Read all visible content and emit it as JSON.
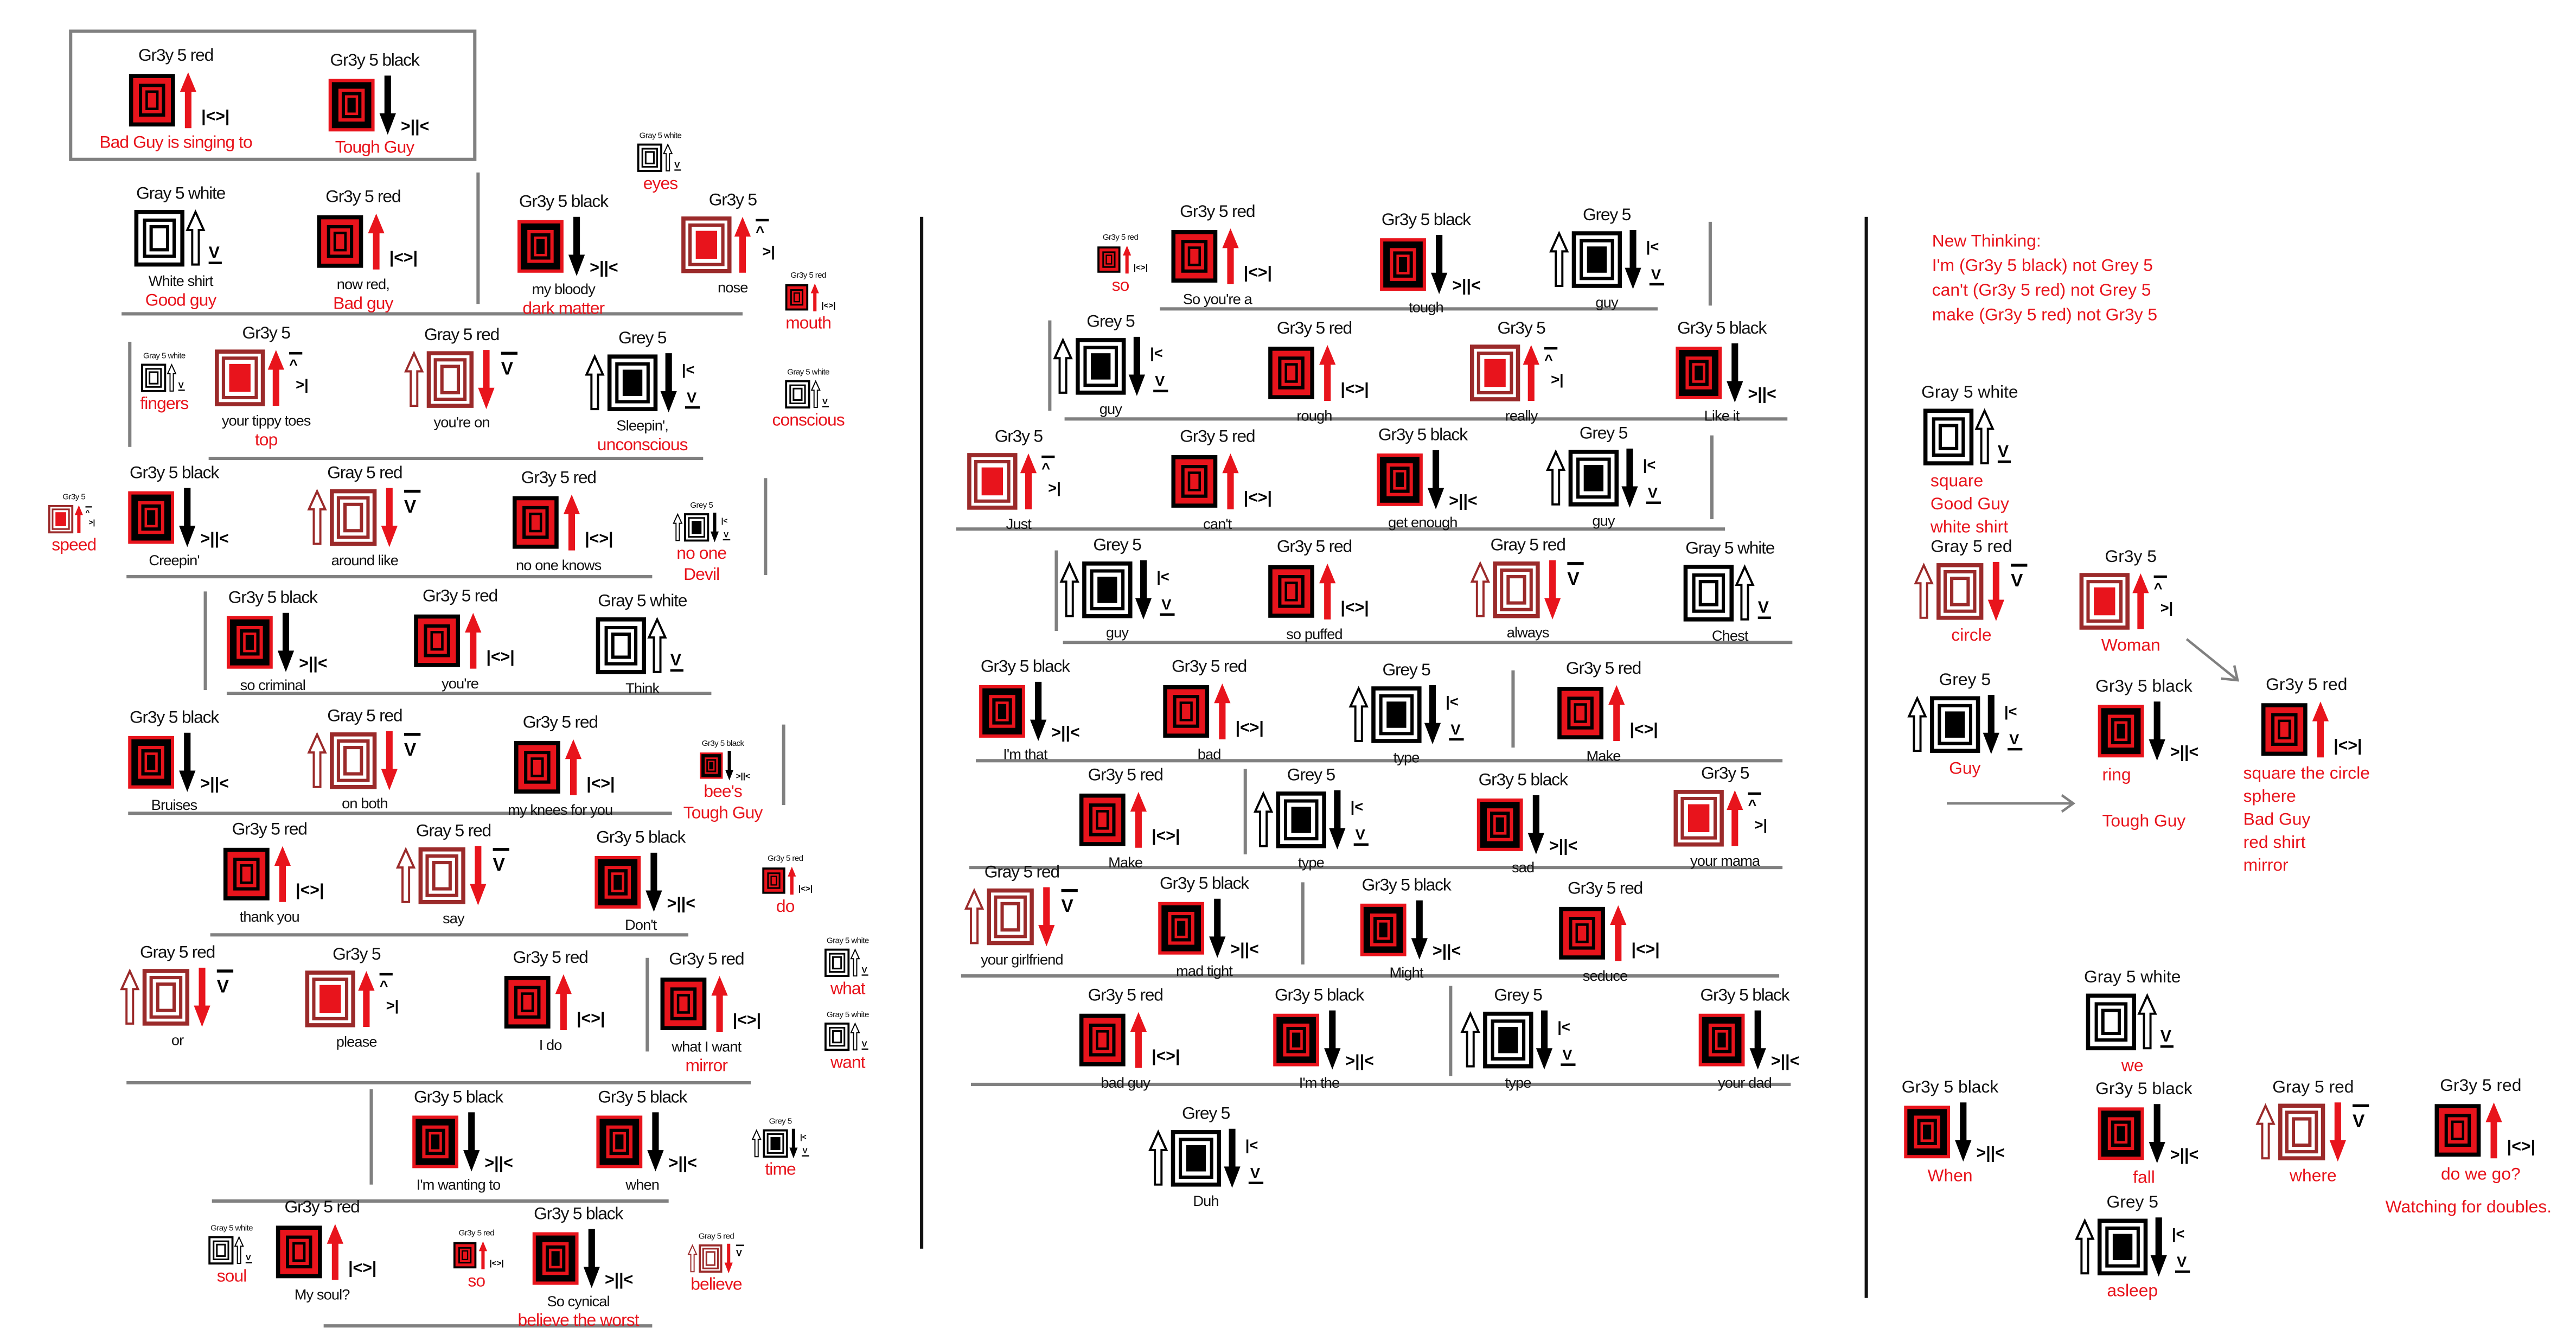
{
  "colors": {
    "red": "#e8141c",
    "dark_red": "#9b2a2a",
    "black": "#000000",
    "divider": "#808080"
  },
  "glyph_types": {
    "gr3y5-red": {
      "symbol": "|<>|",
      "arrow": "red-up"
    },
    "gr3y5-black": {
      "symbol": ">||<",
      "arrow": "black-down"
    },
    "gray5-white": {
      "symbol": "V",
      "arrow": "outline-up"
    },
    "gray5-red": {
      "symbol": "V",
      "arrow": "outline-up-and-red-down"
    },
    "gr3y5": {
      "symbol_top": "^",
      "symbol": ">|",
      "arrow": "red-up"
    },
    "grey5": {
      "symbol_top": "|<",
      "symbol": "V",
      "arrow": "outline-up-and-black-down"
    }
  },
  "legend_box": {
    "items": [
      {
        "label": "Gr3y 5 red",
        "type": "gr3y5-red",
        "caption": "",
        "note": "Bad Guy is singing to"
      },
      {
        "label": "Gr3y 5 black",
        "type": "gr3y5-black",
        "caption": "",
        "note": "Tough Guy"
      }
    ]
  },
  "left_panel": {
    "items": [
      {
        "label": "Gray 5 white",
        "type": "gray5-white",
        "caption": "",
        "note": "eyes"
      },
      {
        "label": "Gray 5 white",
        "type": "gray5-white",
        "caption": "White shirt",
        "note": "Good guy"
      },
      {
        "label": "Gr3y 5 red",
        "type": "gr3y5-red",
        "caption": "now red,",
        "note": "Bad guy"
      },
      {
        "label": "Gr3y 5 black",
        "type": "gr3y5-black",
        "caption": "my bloody",
        "note": "dark matter"
      },
      {
        "label": "Gr3y 5",
        "type": "gr3y5",
        "caption": "nose",
        "note": ""
      },
      {
        "label": "Gr3y 5 red",
        "type": "gr3y5-red",
        "caption": "",
        "note": "mouth"
      },
      {
        "label": "Gray 5 white",
        "type": "gray5-white",
        "caption": "",
        "note": "fingers"
      },
      {
        "label": "Gr3y 5",
        "type": "gr3y5",
        "caption": "your tippy toes",
        "note": "top"
      },
      {
        "label": "Gray 5 red",
        "type": "gray5-red",
        "caption": "you're on",
        "note": ""
      },
      {
        "label": "Grey 5",
        "type": "grey5",
        "caption": "Sleepin',",
        "note": "unconscious"
      },
      {
        "label": "Gray 5 white",
        "type": "gray5-white",
        "caption": "",
        "note": "conscious"
      },
      {
        "label": "Gr3y 5",
        "type": "gr3y5",
        "caption": "",
        "note": "speed"
      },
      {
        "label": "Gr3y 5 black",
        "type": "gr3y5-black",
        "caption": "Creepin'",
        "note": ""
      },
      {
        "label": "Gray 5 red",
        "type": "gray5-red",
        "caption": "around like",
        "note": ""
      },
      {
        "label": "Gr3y 5 red",
        "type": "gr3y5-red",
        "caption": "no one  knows",
        "note": ""
      },
      {
        "label": "Grey 5",
        "type": "grey5",
        "caption": "",
        "note": "no one\nDevil"
      },
      {
        "label": "Gr3y 5 black",
        "type": "gr3y5-black",
        "caption": "so criminal",
        "note": ""
      },
      {
        "label": "Gr3y 5 red",
        "type": "gr3y5-red",
        "caption": "you're",
        "note": ""
      },
      {
        "label": "Gray 5 white",
        "type": "gray5-white",
        "caption": "Think",
        "note": ""
      },
      {
        "label": "Gr3y 5 black",
        "type": "gr3y5-black",
        "caption": "Bruises",
        "note": ""
      },
      {
        "label": "Gray 5 red",
        "type": "gray5-red",
        "caption": "on both",
        "note": ""
      },
      {
        "label": "Gr3y 5 red",
        "type": "gr3y5-red",
        "caption": "my knees for  you",
        "note": ""
      },
      {
        "label": "Gr3y 5 black",
        "type": "gr3y5-black",
        "caption": "",
        "note": "bee's\nTough Guy"
      },
      {
        "label": "Gr3y 5 red",
        "type": "gr3y5-red",
        "caption": "thank you",
        "note": ""
      },
      {
        "label": "Gray 5 red",
        "type": "gray5-red",
        "caption": "say",
        "note": ""
      },
      {
        "label": "Gr3y 5 black",
        "type": "gr3y5-black",
        "caption": "Don't",
        "note": ""
      },
      {
        "label": "Gr3y 5 red",
        "type": "gr3y5-red",
        "caption": "",
        "note": "do"
      },
      {
        "label": "Gray 5 red",
        "type": "gray5-red",
        "caption": "or",
        "note": ""
      },
      {
        "label": "Gr3y 5",
        "type": "gr3y5",
        "caption": "please",
        "note": ""
      },
      {
        "label": "Gr3y 5 red",
        "type": "gr3y5-red",
        "caption": "I do",
        "note": ""
      },
      {
        "label": "Gr3y 5 red",
        "type": "gr3y5-red",
        "caption": "what I want",
        "note": "mirror"
      },
      {
        "label": "Gray 5 white",
        "type": "gray5-white",
        "caption": "",
        "note": "what"
      },
      {
        "label": "Gray 5 white",
        "type": "gray5-white",
        "caption": "",
        "note": "want"
      },
      {
        "label": "Gr3y 5 black",
        "type": "gr3y5-black",
        "caption": "I'm wanting to",
        "note": ""
      },
      {
        "label": "Gr3y 5 black",
        "type": "gr3y5-black",
        "caption": "when",
        "note": ""
      },
      {
        "label": "Grey 5",
        "type": "grey5",
        "caption": "",
        "note": "time"
      },
      {
        "label": "Gray 5 white",
        "type": "gray5-white",
        "caption": "",
        "note": "soul"
      },
      {
        "label": "Gr3y 5 red",
        "type": "gr3y5-red",
        "caption": "My soul?",
        "note": ""
      },
      {
        "label": "Gr3y 5 red",
        "type": "gr3y5-red",
        "caption": "",
        "note": "so"
      },
      {
        "label": "Gr3y 5 black",
        "type": "gr3y5-black",
        "caption": "So cynical",
        "note": "believe the worst"
      },
      {
        "label": "Gray 5 red",
        "type": "gray5-red",
        "caption": "",
        "note": "believe"
      }
    ]
  },
  "middle_panel": {
    "items": [
      {
        "label": "Gr3y 5 red",
        "type": "gr3y5-red",
        "caption": "",
        "note": "so"
      },
      {
        "label": "Gr3y 5 red",
        "type": "gr3y5-red",
        "caption": "So   you're   a",
        "note": ""
      },
      {
        "label": "Gr3y 5 black",
        "type": "gr3y5-black",
        "caption": "tough",
        "note": ""
      },
      {
        "label": "Grey 5",
        "type": "grey5",
        "caption": "guy",
        "note": ""
      },
      {
        "label": "Grey 5",
        "type": "grey5",
        "caption": "guy",
        "note": ""
      },
      {
        "label": "Gr3y 5 red",
        "type": "gr3y5-red",
        "caption": "rough",
        "note": ""
      },
      {
        "label": "Gr3y 5",
        "type": "gr3y5",
        "caption": "really",
        "note": ""
      },
      {
        "label": "Gr3y 5 black",
        "type": "gr3y5-black",
        "caption": "Like it",
        "note": ""
      },
      {
        "label": "Gr3y 5",
        "type": "gr3y5",
        "caption": "Just",
        "note": ""
      },
      {
        "label": "Gr3y 5 red",
        "type": "gr3y5-red",
        "caption": "can't",
        "note": ""
      },
      {
        "label": "Gr3y 5 black",
        "type": "gr3y5-black",
        "caption": "get enough",
        "note": ""
      },
      {
        "label": "Grey 5",
        "type": "grey5",
        "caption": "guy",
        "note": ""
      },
      {
        "label": "Grey 5",
        "type": "grey5",
        "caption": "guy",
        "note": ""
      },
      {
        "label": "Gr3y 5 red",
        "type": "gr3y5-red",
        "caption": "so puffed",
        "note": ""
      },
      {
        "label": "Gray 5 red",
        "type": "gray5-red",
        "caption": "always",
        "note": ""
      },
      {
        "label": "Gray 5 white",
        "type": "gray5-white",
        "caption": "Chest",
        "note": ""
      },
      {
        "label": "Gr3y 5 black",
        "type": "gr3y5-black",
        "caption": "I'm  that",
        "note": ""
      },
      {
        "label": "Gr3y 5 red",
        "type": "gr3y5-red",
        "caption": "bad",
        "note": ""
      },
      {
        "label": "Grey 5",
        "type": "grey5",
        "caption": "type",
        "note": ""
      },
      {
        "label": "Gr3y 5 red",
        "type": "gr3y5-red",
        "caption": "Make",
        "note": ""
      },
      {
        "label": "Gr3y 5 red",
        "type": "gr3y5-red",
        "caption": "Make",
        "note": ""
      },
      {
        "label": "Grey 5",
        "type": "grey5",
        "caption": "type",
        "note": ""
      },
      {
        "label": "Gr3y 5 black",
        "type": "gr3y5-black",
        "caption": "sad",
        "note": ""
      },
      {
        "label": "Gr3y 5",
        "type": "gr3y5",
        "caption": "your mama",
        "note": ""
      },
      {
        "label": "Gray 5 red",
        "type": "gray5-red",
        "caption": "your girlfriend",
        "note": ""
      },
      {
        "label": "Gr3y 5 black",
        "type": "gr3y5-black",
        "caption": "mad tight",
        "note": ""
      },
      {
        "label": "Gr3y 5 black",
        "type": "gr3y5-black",
        "caption": "Might",
        "note": ""
      },
      {
        "label": "Gr3y 5 red",
        "type": "gr3y5-red",
        "caption": "seduce",
        "note": ""
      },
      {
        "label": "Gr3y 5 red",
        "type": "gr3y5-red",
        "caption": "bad guy",
        "note": ""
      },
      {
        "label": "Gr3y 5 black",
        "type": "gr3y5-black",
        "caption": "I'm the",
        "note": ""
      },
      {
        "label": "Grey 5",
        "type": "grey5",
        "caption": "type",
        "note": ""
      },
      {
        "label": "Gr3y 5 black",
        "type": "gr3y5-black",
        "caption": "your dad",
        "note": ""
      },
      {
        "label": "Grey 5",
        "type": "grey5",
        "caption": "Duh",
        "note": ""
      }
    ]
  },
  "right_panel": {
    "thinking": [
      "New Thinking:",
      "I'm (Gr3y 5 black) not Grey 5",
      "can't (Gr3y 5 red) not Grey 5",
      "make (Gr3y 5 red) not Gr3y 5"
    ],
    "items": [
      {
        "label": "Gray 5 white",
        "type": "gray5-white",
        "caption": "",
        "note": "square\nGood Guy\nwhite shirt"
      },
      {
        "label": "Gray 5 red",
        "type": "gray5-red",
        "caption": "",
        "note": "circle"
      },
      {
        "label": "Gr3y 5",
        "type": "gr3y5",
        "caption": "",
        "note": "Woman"
      },
      {
        "label": "Grey 5",
        "type": "grey5",
        "caption": "",
        "note": "Guy"
      },
      {
        "label": "Gr3y 5 black",
        "type": "gr3y5-black",
        "caption": "",
        "note": "ring\n\nTough Guy"
      },
      {
        "label": "Gr3y 5 red",
        "type": "gr3y5-red",
        "caption": "",
        "note": "square the circle\nsphere\nBad Guy\n red shirt\n  mirror"
      },
      {
        "label": "Gray 5 white",
        "type": "gray5-white",
        "caption": "",
        "note": "we"
      },
      {
        "label": "Gr3y 5 black",
        "type": "gr3y5-black",
        "caption": "",
        "note": "When"
      },
      {
        "label": "Gr3y 5 black",
        "type": "gr3y5-black",
        "caption": "",
        "note": "fall"
      },
      {
        "label": "Gray 5 red",
        "type": "gray5-red",
        "caption": "",
        "note": "where"
      },
      {
        "label": "Gr3y 5 red",
        "type": "gr3y5-red",
        "caption": "",
        "note": "do we go?"
      },
      {
        "label": "Grey 5",
        "type": "grey5",
        "caption": "",
        "note": "asleep"
      }
    ],
    "footnote": "Watching for doubles."
  }
}
